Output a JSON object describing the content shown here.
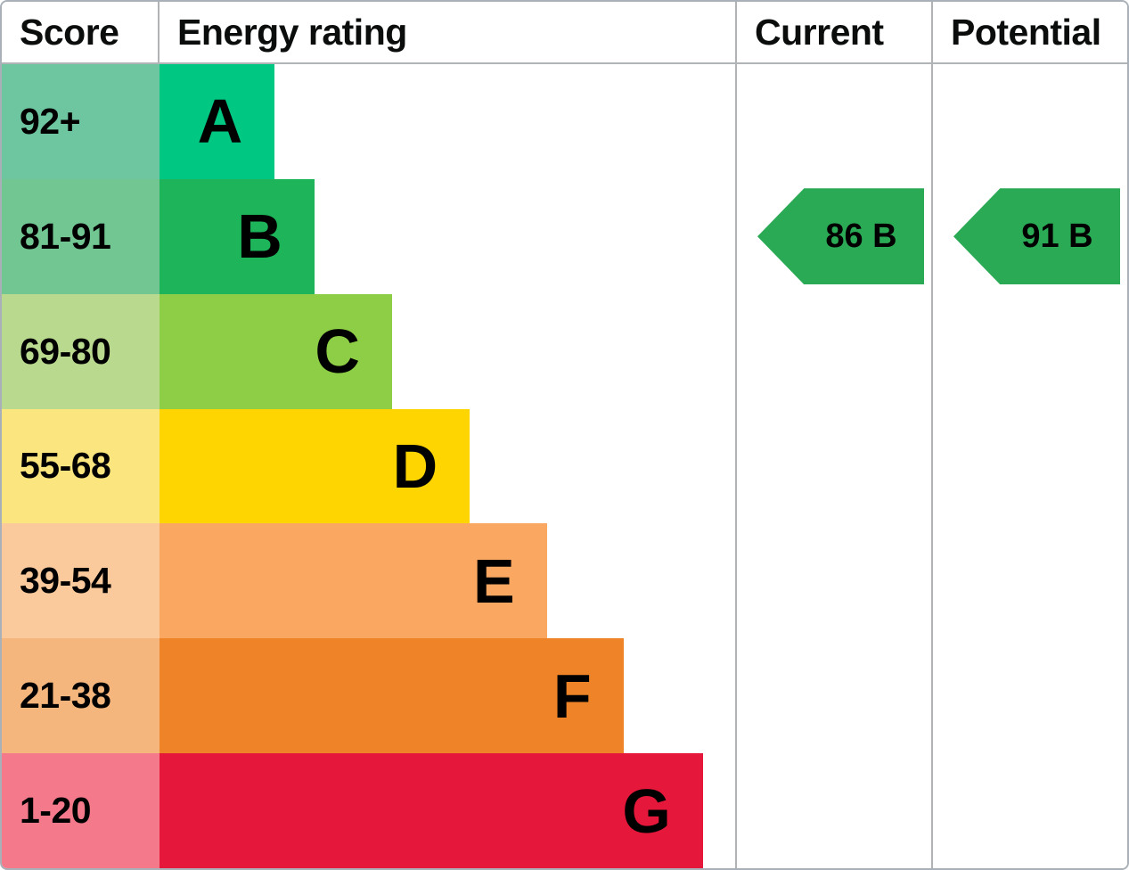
{
  "header": {
    "score": "Score",
    "energy_rating": "Energy rating",
    "current": "Current",
    "potential": "Potential"
  },
  "colors": {
    "grid_line": "#b1b4b6",
    "outer_border": "#a9b0b7",
    "arrow_green": "#2baa55",
    "text": "#000000"
  },
  "chart_data": {
    "type": "bar",
    "title": "EPC energy efficiency rating chart",
    "legend_position": "none",
    "grid": "off",
    "bands": [
      {
        "band": "A",
        "score_range": "92+",
        "bar_width_pct": 20.0,
        "bar_color": "#00c781",
        "score_cell_color": "#6ec6a0"
      },
      {
        "band": "B",
        "score_range": "81-91",
        "bar_width_pct": 26.9,
        "bar_color": "#1db45a",
        "score_cell_color": "#71c692"
      },
      {
        "band": "C",
        "score_range": "69-80",
        "bar_width_pct": 40.4,
        "bar_color": "#8dce46",
        "score_cell_color": "#b9da8e"
      },
      {
        "band": "D",
        "score_range": "55-68",
        "bar_width_pct": 53.9,
        "bar_color": "#fed500",
        "score_cell_color": "#fbe57f"
      },
      {
        "band": "E",
        "score_range": "39-54",
        "bar_width_pct": 67.3,
        "bar_color": "#f9a761",
        "score_cell_color": "#fbca9c"
      },
      {
        "band": "F",
        "score_range": "21-38",
        "bar_width_pct": 80.6,
        "bar_color": "#ee8327",
        "score_cell_color": "#f5b67d"
      },
      {
        "band": "G",
        "score_range": "1-20",
        "bar_width_pct": 94.4,
        "bar_color": "#e5173a",
        "score_cell_color": "#f4798b"
      }
    ],
    "current": {
      "score": 86,
      "band": "B",
      "label": "86 B",
      "arrow_color": "#2baa55"
    },
    "potential": {
      "score": 91,
      "band": "B",
      "label": "91 B",
      "arrow_color": "#2baa55"
    }
  }
}
